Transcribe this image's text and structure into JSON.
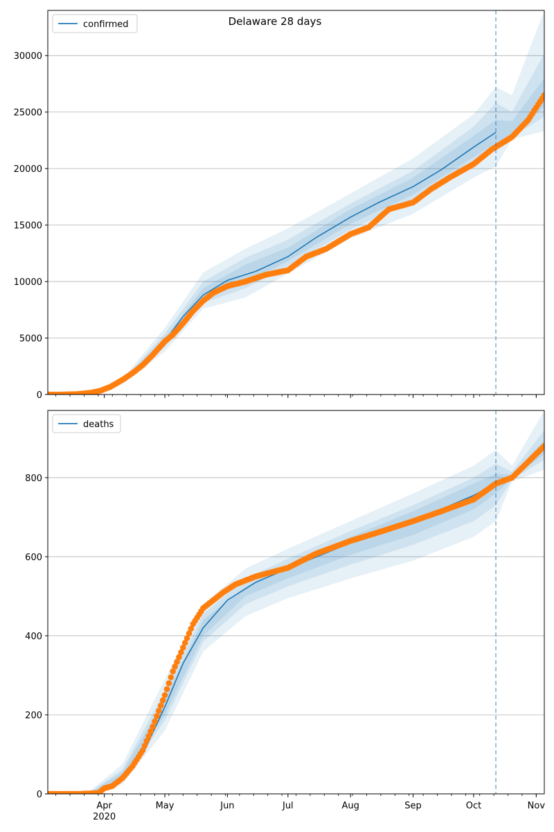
{
  "colors": {
    "model": "#1f77b4",
    "observed": "#ff7f0e",
    "band": "#1f77b4",
    "grid": "#b0b0b0",
    "forecast_line": "#1f77b4"
  },
  "chart_data": [
    {
      "type": "line",
      "title": "Delaware 28 days",
      "legend": {
        "label": "confirmed",
        "placement": "top-left"
      },
      "xlim": [
        "2020-03-04",
        "2020-11-05"
      ],
      "ylim": [
        0,
        34000
      ],
      "yticks": [
        0,
        5000,
        10000,
        15000,
        20000,
        25000,
        30000
      ],
      "ytick_labels": [
        "0",
        "5000",
        "10000",
        "15000",
        "20000",
        "25000",
        "30000"
      ],
      "grid": "horizontal",
      "forecast_start": "2020-10-12",
      "model_median": {
        "name": "confirmed",
        "x": [
          "2020-03-04",
          "2020-03-15",
          "2020-03-25",
          "2020-04-01",
          "2020-04-10",
          "2020-04-20",
          "2020-05-01",
          "2020-05-10",
          "2020-05-20",
          "2020-06-01",
          "2020-06-15",
          "2020-07-01",
          "2020-07-15",
          "2020-08-01",
          "2020-08-15",
          "2020-09-01",
          "2020-09-15",
          "2020-10-01",
          "2020-10-12"
        ],
        "y": [
          0,
          20,
          100,
          300,
          1100,
          2600,
          4700,
          6900,
          8800,
          10100,
          10900,
          12200,
          13900,
          15700,
          17000,
          18400,
          19900,
          21900,
          23200
        ]
      },
      "bands": [
        {
          "x": [
            "2020-03-04",
            "2020-03-25",
            "2020-04-10",
            "2020-05-01",
            "2020-05-20",
            "2020-06-10",
            "2020-07-01",
            "2020-08-01",
            "2020-09-01",
            "2020-10-01",
            "2020-10-12",
            "2020-10-20",
            "2020-11-05"
          ],
          "lower": [
            0,
            80,
            900,
            3800,
            7600,
            8600,
            10700,
            13800,
            16000,
            19200,
            20200,
            22600,
            23300
          ],
          "upper": [
            0,
            130,
            1400,
            5900,
            10800,
            12900,
            14700,
            17800,
            20900,
            24800,
            27200,
            26500,
            34000
          ]
        },
        {
          "x": [
            "2020-03-04",
            "2020-03-25",
            "2020-04-10",
            "2020-05-01",
            "2020-05-20",
            "2020-06-10",
            "2020-07-01",
            "2020-08-01",
            "2020-09-01",
            "2020-10-01",
            "2020-10-12",
            "2020-10-20",
            "2020-11-05"
          ],
          "lower": [
            0,
            90,
            1000,
            4200,
            8100,
            9400,
            11400,
            14600,
            17100,
            20400,
            21700,
            22800,
            24600
          ],
          "upper": [
            0,
            115,
            1250,
            5400,
            10000,
            12100,
            13700,
            16900,
            19800,
            23700,
            25800,
            25000,
            30200
          ]
        },
        {
          "x": [
            "2020-03-04",
            "2020-03-25",
            "2020-04-10",
            "2020-05-01",
            "2020-05-20",
            "2020-06-10",
            "2020-07-01",
            "2020-08-01",
            "2020-09-01",
            "2020-10-01",
            "2020-10-12",
            "2020-10-20",
            "2020-11-05"
          ],
          "lower": [
            0,
            95,
            1050,
            4450,
            8450,
            9900,
            11800,
            15100,
            17700,
            21000,
            22300,
            22900,
            25500
          ],
          "upper": [
            0,
            108,
            1180,
            5050,
            9400,
            11500,
            13000,
            16400,
            19200,
            22900,
            24300,
            24200,
            28000
          ]
        }
      ],
      "observed": {
        "x": [
          "2020-03-04",
          "2020-03-10",
          "2020-03-18",
          "2020-03-25",
          "2020-03-30",
          "2020-04-04",
          "2020-04-10",
          "2020-04-15",
          "2020-04-20",
          "2020-04-25",
          "2020-05-01",
          "2020-05-05",
          "2020-05-10",
          "2020-05-15",
          "2020-05-20",
          "2020-05-25",
          "2020-06-01",
          "2020-06-10",
          "2020-06-20",
          "2020-07-01",
          "2020-07-10",
          "2020-07-20",
          "2020-08-01",
          "2020-08-10",
          "2020-08-20",
          "2020-09-01",
          "2020-09-10",
          "2020-09-20",
          "2020-10-01",
          "2020-10-10",
          "2020-10-20",
          "2020-10-28",
          "2020-11-05"
        ],
        "y": [
          0,
          0,
          30,
          150,
          330,
          680,
          1300,
          1900,
          2600,
          3500,
          4700,
          5300,
          6300,
          7400,
          8300,
          9000,
          9600,
          10000,
          10600,
          11000,
          12200,
          12900,
          14200,
          14800,
          16400,
          17000,
          18200,
          19300,
          20400,
          21700,
          22800,
          24300,
          26500
        ]
      }
    },
    {
      "type": "line",
      "title": "",
      "legend": {
        "label": "deaths",
        "placement": "top-left"
      },
      "xlim": [
        "2020-03-04",
        "2020-11-05"
      ],
      "ylim": [
        0,
        970
      ],
      "yticks": [
        0,
        200,
        400,
        600,
        800
      ],
      "ytick_labels": [
        "0",
        "200",
        "400",
        "600",
        "800"
      ],
      "grid": "horizontal",
      "forecast_start": "2020-10-12",
      "xtick_labels": [
        {
          "date": "2020-04-01",
          "label": "Apr",
          "sublabel": "2020"
        },
        {
          "date": "2020-05-01",
          "label": "May"
        },
        {
          "date": "2020-06-01",
          "label": "Jun"
        },
        {
          "date": "2020-07-01",
          "label": "Jul"
        },
        {
          "date": "2020-08-01",
          "label": "Aug"
        },
        {
          "date": "2020-09-01",
          "label": "Sep"
        },
        {
          "date": "2020-10-01",
          "label": "Oct"
        },
        {
          "date": "2020-11-01",
          "label": "Nov"
        }
      ],
      "model_median": {
        "name": "deaths",
        "x": [
          "2020-03-04",
          "2020-03-25",
          "2020-04-01",
          "2020-04-10",
          "2020-04-20",
          "2020-05-01",
          "2020-05-10",
          "2020-05-20",
          "2020-06-01",
          "2020-06-15",
          "2020-07-01",
          "2020-08-01",
          "2020-09-01",
          "2020-10-01",
          "2020-10-12",
          "2020-10-20",
          "2020-11-05"
        ],
        "y": [
          0,
          2,
          12,
          45,
          100,
          220,
          330,
          420,
          490,
          535,
          570,
          635,
          690,
          755,
          785,
          800,
          875
        ]
      },
      "bands": [
        {
          "x": [
            "2020-03-04",
            "2020-03-25",
            "2020-04-10",
            "2020-05-01",
            "2020-05-20",
            "2020-06-10",
            "2020-07-01",
            "2020-08-01",
            "2020-09-01",
            "2020-10-01",
            "2020-10-12",
            "2020-10-20",
            "2020-11-05"
          ],
          "lower": [
            0,
            0,
            25,
            160,
            360,
            450,
            495,
            545,
            590,
            650,
            690,
            790,
            820
          ],
          "upper": [
            0,
            8,
            75,
            290,
            480,
            570,
            620,
            690,
            760,
            830,
            870,
            830,
            970
          ]
        },
        {
          "x": [
            "2020-03-04",
            "2020-03-25",
            "2020-04-10",
            "2020-05-01",
            "2020-05-20",
            "2020-06-10",
            "2020-07-01",
            "2020-08-01",
            "2020-09-01",
            "2020-10-01",
            "2020-10-12",
            "2020-10-20",
            "2020-11-05"
          ],
          "lower": [
            0,
            1,
            32,
            185,
            385,
            480,
            525,
            580,
            630,
            690,
            730,
            795,
            845
          ],
          "upper": [
            0,
            5,
            62,
            260,
            455,
            545,
            595,
            665,
            730,
            800,
            835,
            815,
            920
          ]
        },
        {
          "x": [
            "2020-03-04",
            "2020-03-25",
            "2020-04-10",
            "2020-05-01",
            "2020-05-20",
            "2020-06-10",
            "2020-07-01",
            "2020-08-01",
            "2020-09-01",
            "2020-10-01",
            "2020-10-12",
            "2020-10-20",
            "2020-11-05"
          ],
          "lower": [
            0,
            1,
            38,
            200,
            400,
            500,
            545,
            605,
            655,
            720,
            760,
            798,
            860
          ],
          "upper": [
            0,
            3,
            55,
            240,
            440,
            525,
            580,
            650,
            715,
            785,
            810,
            808,
            895
          ]
        }
      ],
      "observed": {
        "x": [
          "2020-03-04",
          "2020-03-20",
          "2020-03-29",
          "2020-04-01",
          "2020-04-05",
          "2020-04-10",
          "2020-04-15",
          "2020-04-20",
          "2020-04-25",
          "2020-05-01",
          "2020-05-05",
          "2020-05-10",
          "2020-05-15",
          "2020-05-20",
          "2020-05-25",
          "2020-05-30",
          "2020-06-05",
          "2020-06-15",
          "2020-07-01",
          "2020-07-15",
          "2020-08-01",
          "2020-08-15",
          "2020-09-01",
          "2020-09-15",
          "2020-10-01",
          "2020-10-12",
          "2020-10-20",
          "2020-10-28",
          "2020-11-05"
        ],
        "y": [
          0,
          0,
          2,
          14,
          20,
          40,
          70,
          110,
          170,
          250,
          310,
          370,
          430,
          470,
          490,
          510,
          530,
          550,
          572,
          608,
          640,
          662,
          690,
          715,
          745,
          785,
          800,
          840,
          880
        ]
      }
    }
  ]
}
